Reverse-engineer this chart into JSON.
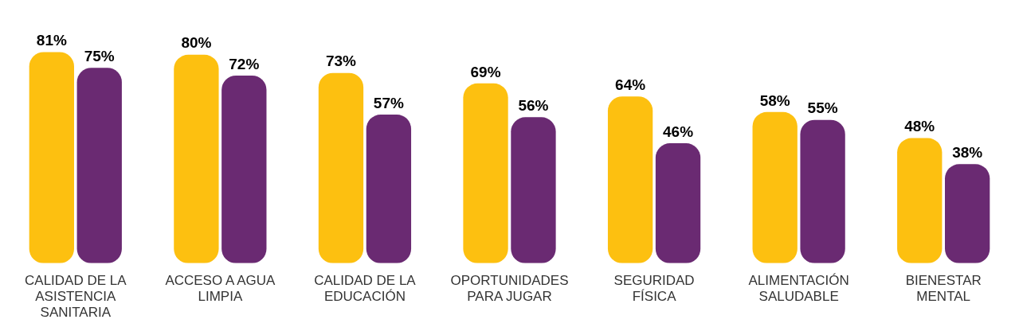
{
  "chart_data": {
    "type": "bar",
    "categories": [
      "CALIDAD DE LA ASISTENCIA SANITARIA",
      "ACCESO A AGUA LIMPIA",
      "CALIDAD DE LA EDUCACIÓN",
      "OPORTUNIDADES PARA JUGAR",
      "SEGURIDAD FÍSICA",
      "ALIMENTACIÓN SALUDABLE",
      "BIENESTAR MENTAL"
    ],
    "series": [
      {
        "color": "#fdc010",
        "values": [
          81,
          80,
          73,
          69,
          64,
          58,
          48
        ],
        "value_labels": [
          "81%",
          "80%",
          "73%",
          "69%",
          "64%",
          "58%",
          "48%"
        ]
      },
      {
        "color": "#6a2a72",
        "values": [
          75,
          72,
          57,
          56,
          46,
          55,
          38
        ],
        "value_labels": [
          "75%",
          "72%",
          "57%",
          "56%",
          "46%",
          "55%",
          "38%"
        ]
      }
    ],
    "grid": false,
    "legend": false
  }
}
